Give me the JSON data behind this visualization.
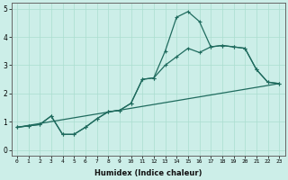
{
  "xlabel": "Humidex (Indice chaleur)",
  "bg_color": "#cceee8",
  "line_color": "#1f6b5e",
  "grid_color": "#aaddcf",
  "xlim": [
    -0.5,
    23.5
  ],
  "ylim": [
    -0.2,
    5.2
  ],
  "xtick_labels": [
    "0",
    "1",
    "2",
    "3",
    "4",
    "5",
    "6",
    "7",
    "8",
    "9",
    "10",
    "11",
    "12",
    "13",
    "14",
    "15",
    "16",
    "17",
    "18",
    "19",
    "20",
    "21",
    "22",
    "23"
  ],
  "ytick_labels": [
    "0",
    "1",
    "2",
    "3",
    "4",
    "5"
  ],
  "series1_x": [
    0,
    1,
    2,
    3,
    4,
    5,
    6,
    7,
    8,
    9,
    10,
    11,
    12,
    13,
    14,
    15,
    16,
    17,
    18,
    19,
    20,
    21,
    22,
    23
  ],
  "series1_y": [
    0.8,
    0.85,
    0.9,
    1.2,
    0.55,
    0.55,
    0.8,
    1.1,
    1.35,
    1.4,
    1.65,
    2.5,
    2.55,
    3.5,
    4.7,
    4.9,
    4.55,
    3.65,
    3.7,
    3.65,
    3.6,
    2.85,
    2.4,
    2.35
  ],
  "series1_markers_x": [
    0,
    1,
    2,
    3,
    4,
    5,
    6,
    7,
    8,
    9,
    10,
    11,
    12,
    13,
    14,
    15,
    16,
    17,
    18,
    19,
    20,
    21,
    22,
    23
  ],
  "series2_x": [
    0,
    1,
    2,
    3,
    4,
    5,
    6,
    7,
    8,
    9,
    10,
    11,
    12,
    13,
    14,
    15,
    16,
    17,
    18,
    19,
    20,
    21,
    22,
    23
  ],
  "series2_y": [
    0.8,
    0.85,
    0.9,
    1.2,
    0.55,
    0.55,
    0.8,
    1.1,
    1.35,
    1.4,
    1.65,
    2.5,
    2.55,
    3.0,
    3.3,
    3.6,
    3.45,
    3.65,
    3.7,
    3.65,
    3.6,
    2.85,
    2.4,
    2.35
  ],
  "series2_markers_x": [
    3,
    4,
    5,
    6,
    7,
    8,
    9,
    10,
    11,
    12,
    13,
    14,
    15,
    16,
    17,
    18,
    19,
    20,
    21,
    22,
    23
  ],
  "series3_x": [
    0,
    23
  ],
  "series3_y": [
    0.8,
    2.35
  ],
  "marker_style": "+",
  "marker_size": 3,
  "linewidth": 0.9
}
